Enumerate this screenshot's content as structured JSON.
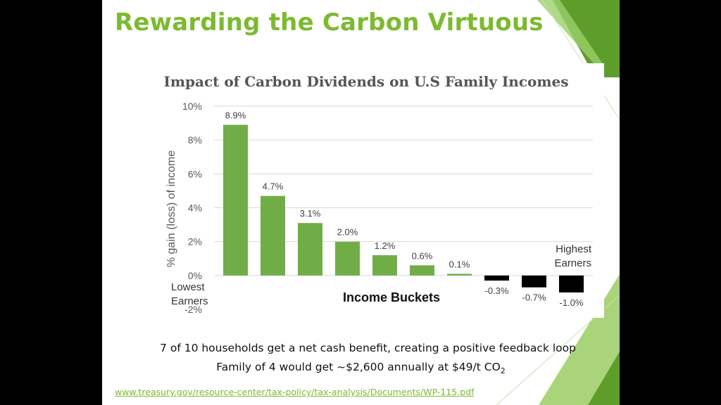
{
  "slide": {
    "title": "Rewarding the Carbon Virtuous",
    "caption_line1": "7 of 10 households get a net cash benefit, creating a positive feedback loop",
    "caption_line2_main": "Family of 4 would get ~$2,600 annually at $49/t CO",
    "caption_line2_sub": "2",
    "source_link": "www.treasury.gov/resource-center/tax-policy/tax-analysis/Documents/WP-115.pdf",
    "colors": {
      "title": "#7cba2f",
      "accent": "#7cba2f",
      "background": "#000000"
    }
  },
  "chart_data": {
    "type": "bar",
    "title": "Impact of Carbon Dividends on U.S Family Incomes",
    "ylabel": "% gain (loss) of income",
    "xlabel": "Income Buckets",
    "ylim": [
      -2,
      10
    ],
    "yticks": [
      "10%",
      "8%",
      "6%",
      "4%",
      "2%",
      "0%",
      "-2%"
    ],
    "values": [
      8.9,
      4.7,
      3.1,
      2.0,
      1.2,
      0.6,
      0.1,
      -0.3,
      -0.7,
      -1.0
    ],
    "data_labels": [
      "8.9%",
      "4.7%",
      "3.1%",
      "2.0%",
      "1.2%",
      "0.6%",
      "0.1%",
      "-0.3%",
      "-0.7%",
      "-1.0%"
    ],
    "colors": {
      "positive": "#70ad47",
      "negative": "#000000",
      "grid": "#d9d9d9"
    },
    "annotations": {
      "lowest_line1": "Lowest",
      "lowest_line2": "Earners",
      "highest_line1": "Highest",
      "highest_line2": "Earners"
    },
    "grid": true,
    "legend": "none"
  }
}
